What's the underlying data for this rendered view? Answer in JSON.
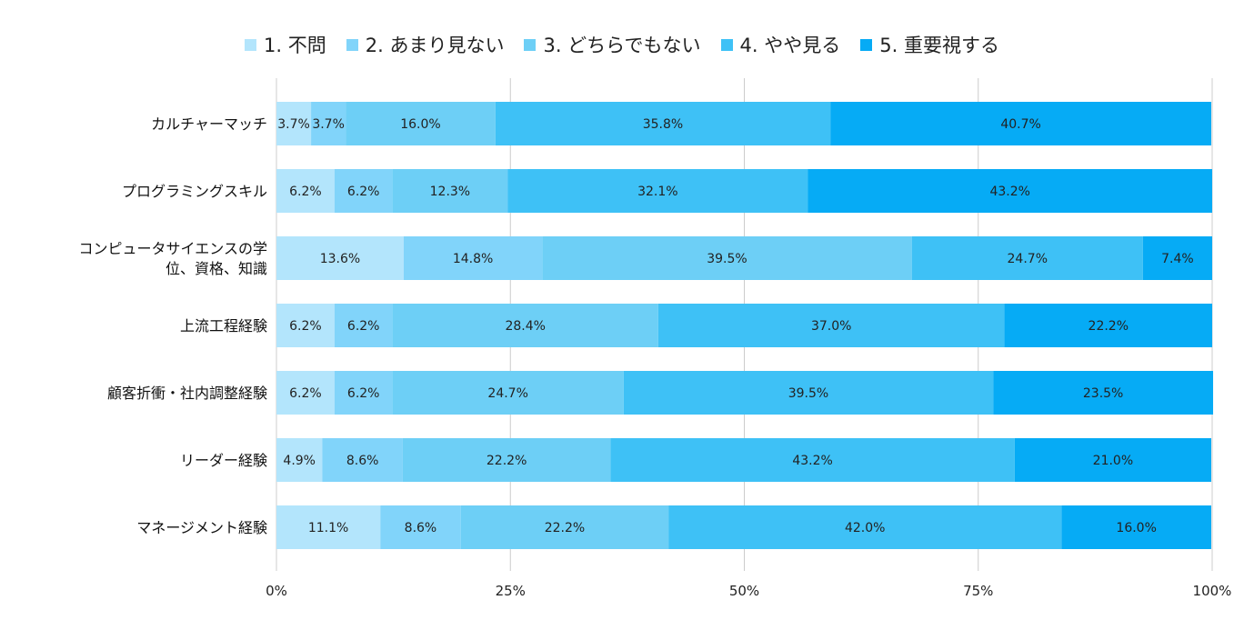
{
  "chart_data": {
    "type": "bar",
    "orientation": "horizontal",
    "stacked": "percent",
    "legend_position": "top",
    "grid": true,
    "categories": [
      [
        "カルチャーマッチ"
      ],
      [
        "プログラミングスキル"
      ],
      [
        "コンピュータサイエンスの学",
        "位、資格、知識"
      ],
      [
        "上流工程経験"
      ],
      [
        "顧客折衝・社内調整経験"
      ],
      [
        "リーダー経験"
      ],
      [
        "マネージメント経験"
      ]
    ],
    "series": [
      {
        "name": "1. 不問",
        "color": "#b3e5fc",
        "values": [
          3.7,
          6.2,
          13.6,
          6.2,
          6.2,
          4.9,
          11.1
        ],
        "labels": [
          "3.7%",
          "6.2%",
          "13.6%",
          "6.2%",
          "6.2%",
          "4.9%",
          "11.1%"
        ]
      },
      {
        "name": "2. あまり見ない",
        "color": "#81d4fa",
        "values": [
          3.7,
          6.2,
          14.8,
          6.2,
          6.2,
          8.6,
          8.6
        ],
        "labels": [
          "3.7%",
          "6.2%",
          "14.8%",
          "6.2%",
          "6.2%",
          "8.6%",
          "8.6%"
        ]
      },
      {
        "name": "3. どちらでもない",
        "color": "#6dcff6",
        "values": [
          16.0,
          12.3,
          39.5,
          28.4,
          24.7,
          22.2,
          22.2
        ],
        "labels": [
          "16.0%",
          "12.3%",
          "39.5%",
          "28.4%",
          "24.7%",
          "22.2%",
          "22.2%"
        ]
      },
      {
        "name": "4. やや見る",
        "color": "#3ec1f6",
        "values": [
          35.8,
          32.1,
          24.7,
          37.0,
          39.5,
          43.2,
          42.0
        ],
        "labels": [
          "35.8%",
          "32.1%",
          "24.7%",
          "37.0%",
          "39.5%",
          "43.2%",
          "42.0%"
        ]
      },
      {
        "name": "5. 重要視する",
        "color": "#06abf5",
        "values": [
          40.7,
          43.2,
          7.4,
          22.2,
          23.5,
          21.0,
          16.0
        ],
        "labels": [
          "40.7%",
          "43.2%",
          "7.4%",
          "22.2%",
          "23.5%",
          "21.0%",
          "16.0%"
        ]
      }
    ],
    "x_ticks": [
      0,
      25,
      50,
      75,
      100
    ],
    "x_tick_labels": [
      "0%",
      "25%",
      "50%",
      "75%",
      "100%"
    ],
    "xlim": [
      0,
      100
    ]
  }
}
